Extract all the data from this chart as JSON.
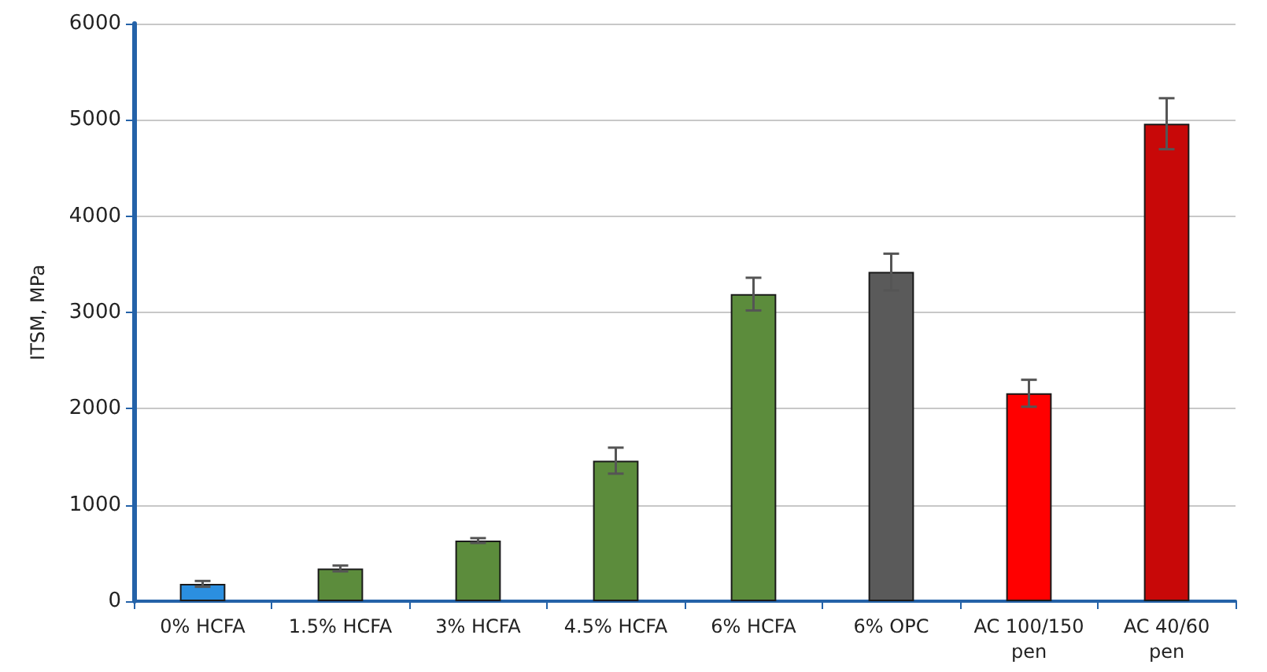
{
  "chart_data": {
    "type": "bar",
    "ylabel": "ITSM, MPa",
    "categories": [
      "0% HCFA",
      "1.5% HCFA",
      "3% HCFA",
      "4.5% HCFA",
      "6% HCFA",
      "6% OPC",
      "AC 100/150\npen",
      "AC 40/60\npen"
    ],
    "values": [
      180,
      340,
      630,
      1460,
      3190,
      3420,
      2160,
      4960
    ],
    "colors": [
      "#2b8fe0",
      "#5c8c3c",
      "#5c8c3c",
      "#5c8c3c",
      "#5c8c3c",
      "#5a5a5a",
      "#ff0000",
      "#c80808"
    ],
    "errors": [
      30,
      30,
      25,
      135,
      170,
      190,
      140,
      265
    ],
    "ylim": [
      0,
      6000
    ],
    "yticks": [
      0,
      1000,
      2000,
      3000,
      4000,
      5000,
      6000
    ],
    "grid": "y"
  }
}
